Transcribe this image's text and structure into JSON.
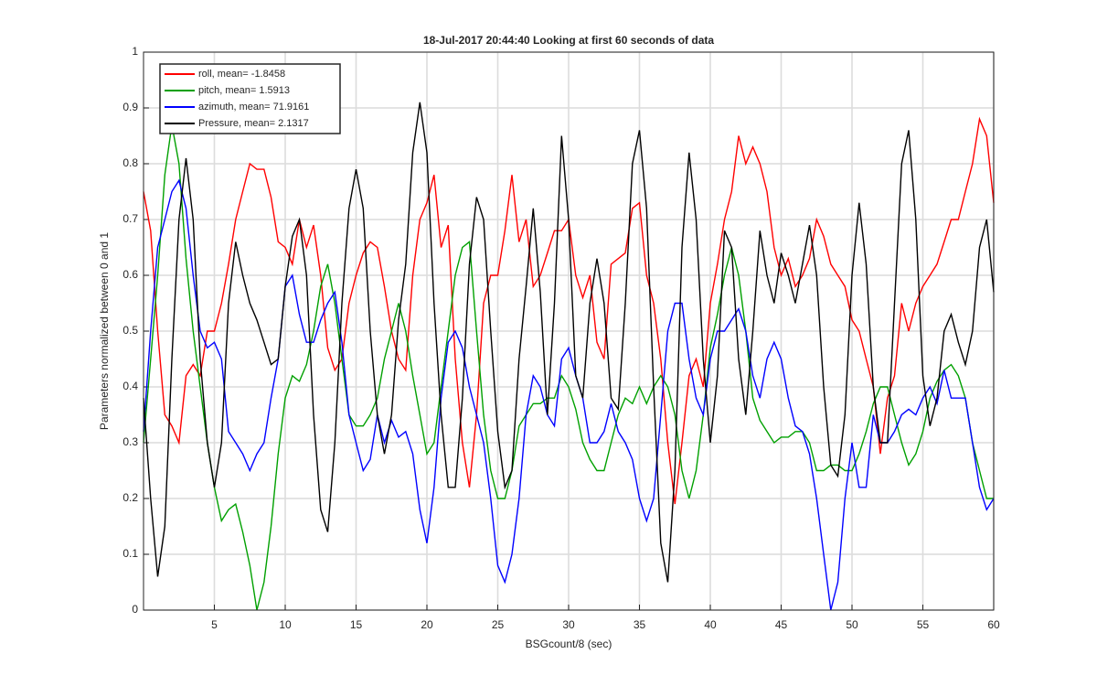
{
  "chart_data": {
    "type": "line",
    "title": "18-Jul-2017 20:44:40 Looking at first 60 seconds of data",
    "xlabel": "BSGcount/8 (sec)",
    "ylabel": "Parameters normalized between 0 and 1",
    "x": [
      0,
      0.5,
      1,
      1.5,
      2,
      2.5,
      3,
      3.5,
      4,
      4.5,
      5,
      5.5,
      6,
      6.5,
      7,
      7.5,
      8,
      8.5,
      9,
      9.5,
      10,
      10.5,
      11,
      11.5,
      12,
      12.5,
      13,
      13.5,
      14,
      14.5,
      15,
      15.5,
      16,
      16.5,
      17,
      17.5,
      18,
      18.5,
      19,
      19.5,
      20,
      20.5,
      21,
      21.5,
      22,
      22.5,
      23,
      23.5,
      24,
      24.5,
      25,
      25.5,
      26,
      26.5,
      27,
      27.5,
      28,
      28.5,
      29,
      29.5,
      30,
      30.5,
      31,
      31.5,
      32,
      32.5,
      33,
      33.5,
      34,
      34.5,
      35,
      35.5,
      36,
      36.5,
      37,
      37.5,
      38,
      38.5,
      39,
      39.5,
      40,
      40.5,
      41,
      41.5,
      42,
      42.5,
      43,
      43.5,
      44,
      44.5,
      45,
      45.5,
      46,
      46.5,
      47,
      47.5,
      48,
      48.5,
      49,
      49.5,
      50,
      50.5,
      51,
      51.5,
      52,
      52.5,
      53,
      53.5,
      54,
      54.5,
      55,
      55.5,
      56,
      56.5,
      57,
      57.5,
      58,
      58.5,
      59,
      59.5,
      60
    ],
    "series": [
      {
        "name": "roll, mean= -1.8458",
        "color": "#ff0000",
        "values": [
          0.75,
          0.68,
          0.5,
          0.35,
          0.33,
          0.3,
          0.42,
          0.44,
          0.42,
          0.5,
          0.5,
          0.55,
          0.62,
          0.7,
          0.75,
          0.8,
          0.79,
          0.79,
          0.74,
          0.66,
          0.65,
          0.62,
          0.7,
          0.65,
          0.69,
          0.6,
          0.47,
          0.43,
          0.45,
          0.55,
          0.6,
          0.64,
          0.66,
          0.65,
          0.58,
          0.5,
          0.45,
          0.43,
          0.6,
          0.7,
          0.73,
          0.78,
          0.65,
          0.69,
          0.45,
          0.3,
          0.22,
          0.35,
          0.55,
          0.6,
          0.6,
          0.68,
          0.78,
          0.66,
          0.7,
          0.58,
          0.6,
          0.64,
          0.68,
          0.68,
          0.7,
          0.6,
          0.56,
          0.6,
          0.48,
          0.45,
          0.62,
          0.63,
          0.64,
          0.72,
          0.73,
          0.6,
          0.55,
          0.45,
          0.3,
          0.19,
          0.3,
          0.42,
          0.45,
          0.4,
          0.55,
          0.62,
          0.7,
          0.75,
          0.85,
          0.8,
          0.83,
          0.8,
          0.75,
          0.65,
          0.6,
          0.63,
          0.58,
          0.6,
          0.63,
          0.7,
          0.67,
          0.62,
          0.6,
          0.58,
          0.52,
          0.5,
          0.45,
          0.4,
          0.28,
          0.38,
          0.42,
          0.55,
          0.5,
          0.55,
          0.58,
          0.6,
          0.62,
          0.66,
          0.7,
          0.7,
          0.75,
          0.8,
          0.88,
          0.85,
          0.73
        ]
      },
      {
        "name": "pitch, mean= 1.5913",
        "color": "#00a000",
        "values": [
          0.3,
          0.45,
          0.6,
          0.78,
          0.87,
          0.8,
          0.63,
          0.5,
          0.4,
          0.3,
          0.22,
          0.16,
          0.18,
          0.19,
          0.14,
          0.08,
          0,
          0.05,
          0.15,
          0.28,
          0.38,
          0.42,
          0.41,
          0.44,
          0.5,
          0.58,
          0.62,
          0.55,
          0.45,
          0.35,
          0.33,
          0.33,
          0.35,
          0.38,
          0.45,
          0.5,
          0.55,
          0.5,
          0.42,
          0.35,
          0.28,
          0.3,
          0.4,
          0.5,
          0.6,
          0.65,
          0.66,
          0.5,
          0.35,
          0.25,
          0.2,
          0.2,
          0.25,
          0.33,
          0.35,
          0.37,
          0.37,
          0.38,
          0.38,
          0.42,
          0.4,
          0.36,
          0.3,
          0.27,
          0.25,
          0.25,
          0.3,
          0.35,
          0.38,
          0.37,
          0.4,
          0.37,
          0.4,
          0.42,
          0.4,
          0.35,
          0.25,
          0.2,
          0.25,
          0.35,
          0.47,
          0.53,
          0.6,
          0.65,
          0.6,
          0.5,
          0.38,
          0.34,
          0.32,
          0.3,
          0.31,
          0.31,
          0.32,
          0.32,
          0.3,
          0.25,
          0.25,
          0.26,
          0.26,
          0.25,
          0.25,
          0.28,
          0.32,
          0.37,
          0.4,
          0.4,
          0.35,
          0.3,
          0.26,
          0.28,
          0.32,
          0.38,
          0.41,
          0.43,
          0.44,
          0.42,
          0.38,
          0.3,
          0.25,
          0.2,
          0.2
        ]
      },
      {
        "name": "azimuth, mean= 71.9161",
        "color": "#0000ff",
        "values": [
          0.32,
          0.5,
          0.65,
          0.7,
          0.75,
          0.77,
          0.72,
          0.6,
          0.5,
          0.47,
          0.48,
          0.45,
          0.32,
          0.3,
          0.28,
          0.25,
          0.28,
          0.3,
          0.38,
          0.45,
          0.58,
          0.6,
          0.53,
          0.48,
          0.48,
          0.52,
          0.55,
          0.57,
          0.48,
          0.35,
          0.3,
          0.25,
          0.27,
          0.35,
          0.3,
          0.34,
          0.31,
          0.32,
          0.28,
          0.18,
          0.12,
          0.22,
          0.38,
          0.48,
          0.5,
          0.47,
          0.4,
          0.35,
          0.3,
          0.2,
          0.08,
          0.05,
          0.1,
          0.2,
          0.35,
          0.42,
          0.4,
          0.35,
          0.33,
          0.45,
          0.47,
          0.42,
          0.38,
          0.3,
          0.3,
          0.32,
          0.37,
          0.32,
          0.3,
          0.27,
          0.2,
          0.16,
          0.2,
          0.35,
          0.5,
          0.55,
          0.55,
          0.45,
          0.38,
          0.35,
          0.45,
          0.5,
          0.5,
          0.52,
          0.54,
          0.5,
          0.42,
          0.38,
          0.45,
          0.48,
          0.45,
          0.38,
          0.33,
          0.32,
          0.28,
          0.2,
          0.1,
          0,
          0.05,
          0.2,
          0.3,
          0.22,
          0.22,
          0.35,
          0.3,
          0.3,
          0.32,
          0.35,
          0.36,
          0.35,
          0.38,
          0.4,
          0.37,
          0.43,
          0.38,
          0.38,
          0.38,
          0.3,
          0.22,
          0.18,
          0.2
        ]
      },
      {
        "name": "Pressure, mean= 2.1317",
        "color": "#000000",
        "values": [
          0.38,
          0.2,
          0.06,
          0.15,
          0.45,
          0.7,
          0.81,
          0.7,
          0.45,
          0.3,
          0.22,
          0.3,
          0.55,
          0.66,
          0.6,
          0.55,
          0.52,
          0.48,
          0.44,
          0.45,
          0.58,
          0.67,
          0.7,
          0.6,
          0.35,
          0.18,
          0.14,
          0.3,
          0.55,
          0.72,
          0.79,
          0.72,
          0.5,
          0.35,
          0.28,
          0.35,
          0.52,
          0.62,
          0.82,
          0.91,
          0.82,
          0.55,
          0.35,
          0.22,
          0.22,
          0.38,
          0.62,
          0.74,
          0.7,
          0.5,
          0.32,
          0.22,
          0.25,
          0.45,
          0.58,
          0.72,
          0.57,
          0.35,
          0.55,
          0.85,
          0.7,
          0.42,
          0.38,
          0.55,
          0.63,
          0.55,
          0.38,
          0.36,
          0.55,
          0.8,
          0.86,
          0.72,
          0.4,
          0.12,
          0.05,
          0.25,
          0.65,
          0.82,
          0.7,
          0.45,
          0.3,
          0.42,
          0.68,
          0.65,
          0.45,
          0.35,
          0.5,
          0.68,
          0.6,
          0.55,
          0.64,
          0.6,
          0.55,
          0.62,
          0.69,
          0.6,
          0.4,
          0.26,
          0.24,
          0.35,
          0.6,
          0.73,
          0.62,
          0.4,
          0.3,
          0.3,
          0.55,
          0.8,
          0.86,
          0.7,
          0.42,
          0.33,
          0.38,
          0.5,
          0.53,
          0.48,
          0.44,
          0.5,
          0.65,
          0.7,
          0.57
        ]
      }
    ],
    "xlim": [
      0,
      60
    ],
    "xticks": [
      5,
      10,
      15,
      20,
      25,
      30,
      35,
      40,
      45,
      50,
      55,
      60
    ],
    "ylim": [
      0,
      1
    ],
    "yticks": [
      0,
      0.1,
      0.2,
      0.3,
      0.4,
      0.5,
      0.6,
      0.7,
      0.8,
      0.9,
      1
    ],
    "grid": true,
    "legend": "upper left"
  }
}
